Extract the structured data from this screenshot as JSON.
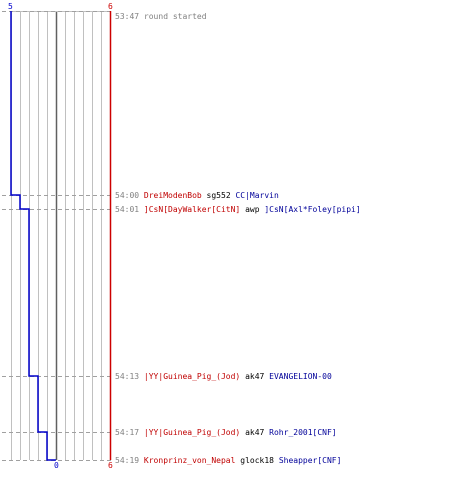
{
  "scores": {
    "blue_start": "5",
    "red_start": "6",
    "blue_end": "0",
    "red_end": "6"
  },
  "colors": {
    "red_team": "#c00000",
    "blue_team": "#000099",
    "grid": "#c0c0c0",
    "timestamp": "#808080"
  },
  "events": [
    {
      "time": "53:47",
      "message": "round started"
    },
    {
      "time": "54:00",
      "killer": "DreiModenBob",
      "killer_team": "red",
      "weapon": "sg552",
      "victim": "CC|Marvin",
      "victim_team": "blue"
    },
    {
      "time": "54:01",
      "killer": "]CsN[DayWalker[CitN]",
      "killer_team": "red",
      "weapon": "awp",
      "victim": "]CsN[Axl*Foley[pipi]",
      "victim_team": "blue"
    },
    {
      "time": "54:13",
      "killer": "|YY|Guinea_Pig_(Jod)",
      "killer_team": "red",
      "weapon": "ak47",
      "victim": "EVANGELION-00",
      "victim_team": "blue"
    },
    {
      "time": "54:17",
      "killer": "|YY|Guinea_Pig_(Jod)",
      "killer_team": "red",
      "weapon": "ak47",
      "victim": "Rohr_2001[CNF]",
      "victim_team": "blue"
    },
    {
      "time": "54:19",
      "killer": "Kronprinz_von_Nepal",
      "killer_team": "red",
      "weapon": "glock18",
      "victim": "Sheapper[CNF]",
      "victim_team": "blue"
    }
  ]
}
